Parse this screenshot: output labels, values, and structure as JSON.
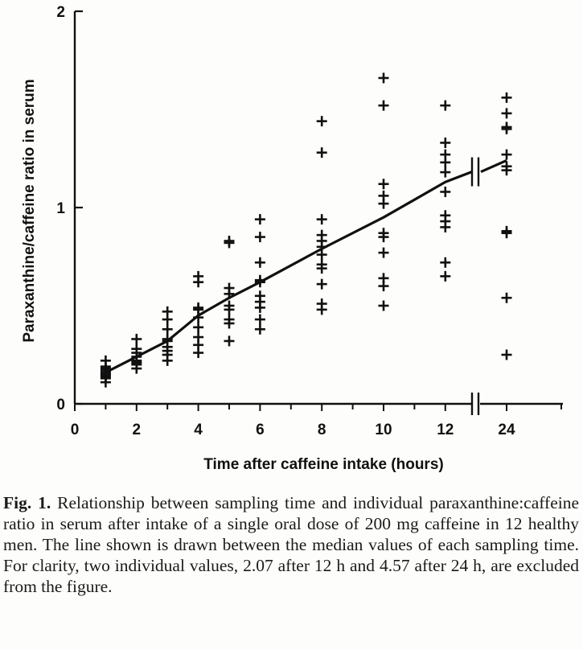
{
  "chart_data": {
    "type": "scatter",
    "title": "",
    "xlabel": "Time after caffeine intake (hours)",
    "ylabel": "Paraxanthine/caffeine ratio in serum",
    "x_ticks": [
      "0",
      "2",
      "4",
      "6",
      "8",
      "10",
      "12",
      "24"
    ],
    "y_ticks": [
      "0",
      "1",
      "2"
    ],
    "ylim": [
      0,
      2
    ],
    "xlim": [
      0,
      13
    ],
    "grid": false,
    "legend": "none",
    "axis_break": "between 12 and 24 hours",
    "series": [
      {
        "values": [
          {
            "x": 1,
            "y": [
              0.22,
              0.19,
              0.18,
              0.17,
              0.16,
              0.15,
              0.15,
              0.14,
              0.13,
              0.11
            ]
          },
          {
            "x": 2,
            "y": [
              0.33,
              0.28,
              0.26,
              0.24,
              0.22,
              0.21,
              0.2,
              0.18
            ]
          },
          {
            "x": 3,
            "y": [
              0.47,
              0.43,
              0.38,
              0.33,
              0.32,
              0.29,
              0.27,
              0.25,
              0.22
            ]
          },
          {
            "x": 4,
            "y": [
              0.65,
              0.62,
              0.49,
              0.48,
              0.44,
              0.39,
              0.34,
              0.3,
              0.26
            ]
          },
          {
            "x": 5,
            "y": [
              0.83,
              0.82,
              0.59,
              0.56,
              0.5,
              0.48,
              0.43,
              0.41,
              0.32
            ]
          },
          {
            "x": 6,
            "y": [
              0.94,
              0.85,
              0.72,
              0.63,
              0.62,
              0.55,
              0.52,
              0.49,
              0.43,
              0.38
            ]
          },
          {
            "x": 8,
            "y": [
              1.44,
              1.28,
              0.94,
              0.86,
              0.83,
              0.8,
              0.76,
              0.71,
              0.69,
              0.61,
              0.51,
              0.48
            ]
          },
          {
            "x": 10,
            "y": [
              1.66,
              1.52,
              1.12,
              1.06,
              1.02,
              0.87,
              0.85,
              0.77,
              0.64,
              0.6,
              0.5
            ]
          },
          {
            "x": 12,
            "y": [
              1.52,
              1.33,
              1.27,
              1.23,
              1.18,
              1.08,
              0.96,
              0.93,
              0.9,
              0.72,
              0.65
            ]
          },
          {
            "x": 24,
            "y": [
              1.56,
              1.48,
              1.41,
              1.4,
              1.27,
              1.21,
              1.19,
              0.88,
              0.87,
              0.54,
              0.25
            ]
          }
        ]
      },
      {
        "type": "line",
        "values": [
          {
            "x": 1,
            "y": 0.16
          },
          {
            "x": 2,
            "y": 0.24
          },
          {
            "x": 3,
            "y": 0.32
          },
          {
            "x": 4,
            "y": 0.45
          },
          {
            "x": 5,
            "y": 0.54
          },
          {
            "x": 6,
            "y": 0.62
          },
          {
            "x": 8,
            "y": 0.79
          },
          {
            "x": 10,
            "y": 0.95
          },
          {
            "x": 12,
            "y": 1.13
          },
          {
            "x": 24,
            "y": 1.24
          }
        ]
      }
    ]
  },
  "caption": {
    "label": "Fig. 1.",
    "text": "Relationship between sampling time and individual paraxanthine:caffeine ratio in serum after intake of a single oral dose of 200 mg caffeine in 12 healthy men. The line shown is drawn between the median values of each sampling time. For clarity, two individual values, 2.07 after 12 h and 4.57 after 24 h, are excluded from the figure."
  }
}
